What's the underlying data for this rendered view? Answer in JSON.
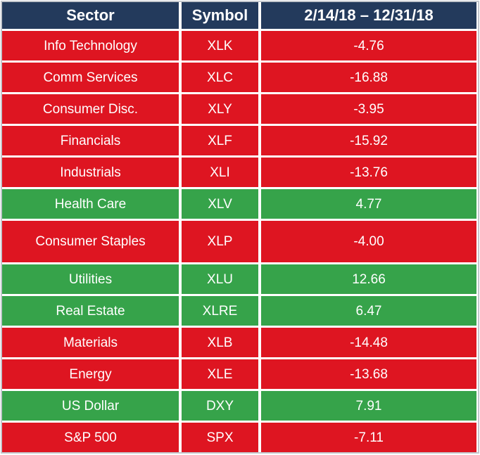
{
  "colors": {
    "header_bg": "#233a5c",
    "negative_bg": "#de1521",
    "positive_bg": "#36a34a",
    "text": "#ffffff",
    "outer_border": "#c3c7cd",
    "gap": "#ffffff"
  },
  "table": {
    "headers": {
      "sector": "Sector",
      "symbol": "Symbol",
      "period": "2/14/18 – 12/31/18"
    },
    "rows": [
      {
        "sector": "Info Technology",
        "symbol": "XLK",
        "value": "-4.76",
        "row_class": "negative"
      },
      {
        "sector": "Comm Services",
        "symbol": "XLC",
        "value": "-16.88",
        "row_class": "negative"
      },
      {
        "sector": "Consumer Disc.",
        "symbol": "XLY",
        "value": "-3.95",
        "row_class": "negative"
      },
      {
        "sector": "Financials",
        "symbol": "XLF",
        "value": "-15.92",
        "row_class": "negative"
      },
      {
        "sector": "Industrials",
        "symbol": "XLI",
        "value": "-13.76",
        "row_class": "negative"
      },
      {
        "sector": "Health Care",
        "symbol": "XLV",
        "value": "4.77",
        "row_class": "positive"
      },
      {
        "sector": "Consumer Staples",
        "symbol": "XLP",
        "value": "-4.00",
        "row_class": "negative tall"
      },
      {
        "sector": "Utilities",
        "symbol": "XLU",
        "value": "12.66",
        "row_class": "positive"
      },
      {
        "sector": "Real Estate",
        "symbol": "XLRE",
        "value": "6.47",
        "row_class": "positive"
      },
      {
        "sector": "Materials",
        "symbol": "XLB",
        "value": "-14.48",
        "row_class": "negative"
      },
      {
        "sector": "Energy",
        "symbol": "XLE",
        "value": "-13.68",
        "row_class": "negative"
      },
      {
        "sector": "US Dollar",
        "symbol": "DXY",
        "value": "7.91",
        "row_class": "positive"
      },
      {
        "sector": "S&P 500",
        "symbol": "SPX",
        "value": "-7.11",
        "row_class": "negative"
      }
    ]
  },
  "chart_data": {
    "type": "table",
    "title": "Sector performance 2/14/18 – 12/31/18",
    "columns": [
      "Sector",
      "Symbol",
      "2/14/18 – 12/31/18"
    ],
    "rows": [
      [
        "Info Technology",
        "XLK",
        -4.76
      ],
      [
        "Comm Services",
        "XLC",
        -16.88
      ],
      [
        "Consumer Disc.",
        "XLY",
        -3.95
      ],
      [
        "Financials",
        "XLF",
        -15.92
      ],
      [
        "Industrials",
        "XLI",
        -13.76
      ],
      [
        "Health Care",
        "XLV",
        4.77
      ],
      [
        "Consumer Staples",
        "XLP",
        -4.0
      ],
      [
        "Utilities",
        "XLU",
        12.66
      ],
      [
        "Real Estate",
        "XLRE",
        6.47
      ],
      [
        "Materials",
        "XLB",
        -14.48
      ],
      [
        "Energy",
        "XLE",
        -13.68
      ],
      [
        "US Dollar",
        "DXY",
        7.91
      ],
      [
        "S&P 500",
        "SPX",
        -7.11
      ]
    ],
    "row_color_rule": "negative values red background, positive values green background",
    "legend_position": "none",
    "grid": "white separators between cells"
  }
}
